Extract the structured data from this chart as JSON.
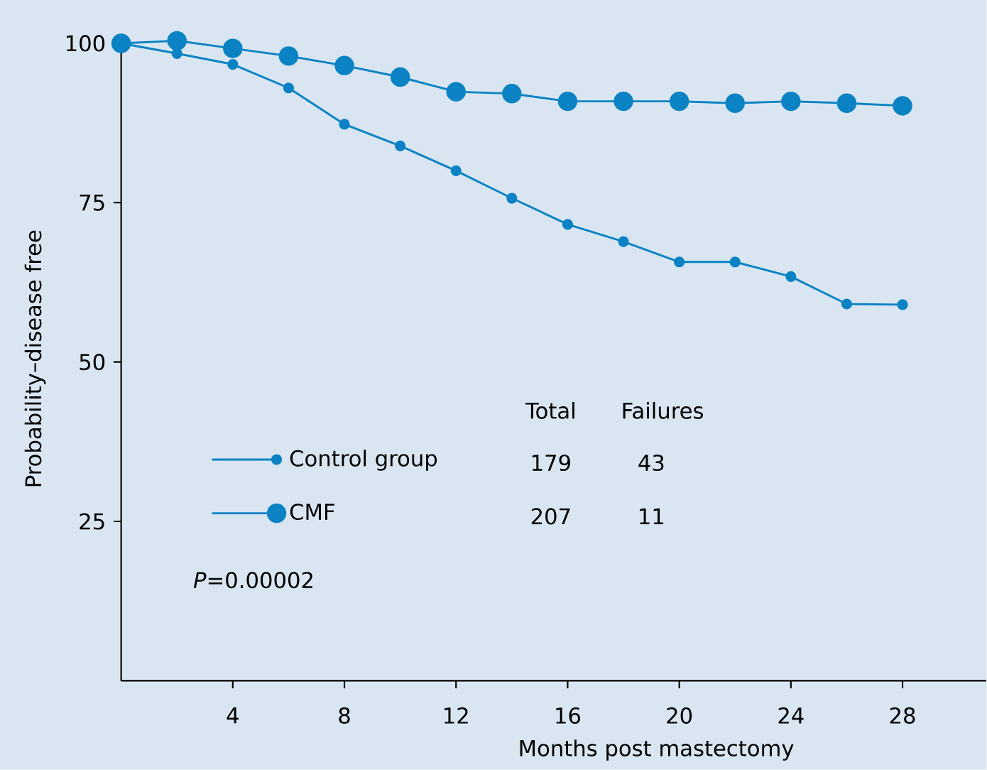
{
  "chart_data": {
    "type": "line",
    "xlabel": "Months post mastectomy",
    "ylabel": "Probability–disease free",
    "x": [
      0,
      2,
      4,
      6,
      8,
      10,
      12,
      14,
      16,
      18,
      20,
      22,
      24,
      26,
      28
    ],
    "series": [
      {
        "name": "Control group",
        "color": "#0a82c3",
        "marker": "circle",
        "values": [
          100,
          98.4,
          96.7,
          93.0,
          87.3,
          83.9,
          80.0,
          75.7,
          71.6,
          68.9,
          65.7,
          65.7,
          63.4,
          59.1,
          59.0
        ]
      },
      {
        "name": "CMF",
        "color": "#0a82c3",
        "marker": "circle",
        "values": [
          100,
          100.4,
          99.2,
          98.0,
          96.5,
          94.7,
          92.4,
          92.1,
          90.9,
          90.9,
          90.9,
          90.6,
          90.9,
          90.6,
          90.2
        ]
      }
    ],
    "xlim": [
      0,
      31
    ],
    "ylim": [
      0,
      101
    ],
    "xticks": [
      4,
      8,
      12,
      16,
      20,
      24,
      28
    ],
    "yticks": [
      25,
      50,
      75,
      100
    ],
    "grid": false,
    "legend": "left",
    "annotations": [
      "Total",
      "Failures",
      "179",
      "43",
      "207",
      "11",
      "*P*=0.00002"
    ]
  }
}
